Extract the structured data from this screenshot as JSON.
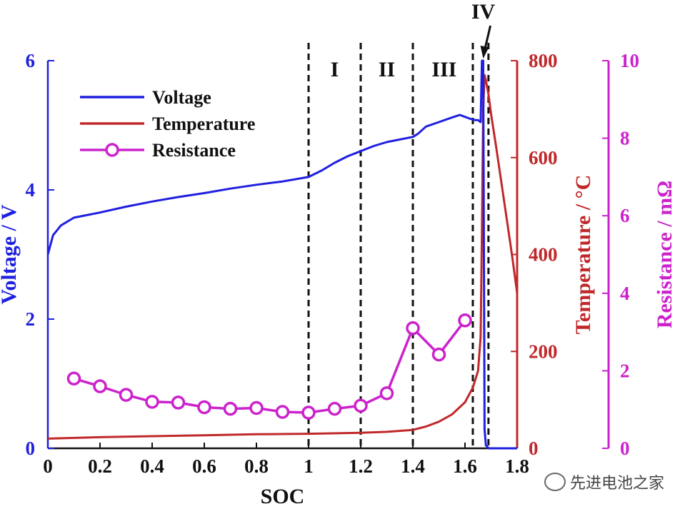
{
  "chart_data": {
    "type": "line",
    "xlabel": "SOC",
    "xlim": [
      0,
      1.8
    ],
    "xticks": [
      "0",
      "0.2",
      "0.4",
      "0.6",
      "0.8",
      "1",
      "1.2",
      "1.4",
      "1.6",
      "1.8"
    ],
    "xtick_values": [
      0,
      0.2,
      0.4,
      0.6,
      0.8,
      1.0,
      1.2,
      1.4,
      1.6,
      1.8
    ],
    "y_axes": [
      {
        "label": "Voltage / V",
        "lim": [
          0,
          6
        ],
        "ticks": [
          "0",
          "2",
          "4",
          "6"
        ],
        "tick_values": [
          0,
          2,
          4,
          6
        ],
        "color": "#1f1fe0",
        "side": "left"
      },
      {
        "label": "Temperature / °C",
        "lim": [
          0,
          800
        ],
        "ticks": [
          "0",
          "200",
          "400",
          "600",
          "800"
        ],
        "tick_values": [
          0,
          200,
          400,
          600,
          800
        ],
        "color": "#c0282a",
        "side": "right"
      },
      {
        "label": "Resistance / mΩ",
        "lim": [
          0,
          10
        ],
        "ticks": [
          "0",
          "2",
          "4",
          "6",
          "8",
          "10"
        ],
        "tick_values": [
          0,
          2,
          4,
          6,
          8,
          10
        ],
        "color": "#cc22cc",
        "side": "right-outer"
      }
    ],
    "series": [
      {
        "name": "Voltage",
        "axis": 0,
        "color": "#1f1fe0",
        "marker": "none",
        "x": [
          0,
          0.02,
          0.05,
          0.1,
          0.2,
          0.3,
          0.4,
          0.5,
          0.6,
          0.7,
          0.8,
          0.9,
          1.0,
          1.05,
          1.1,
          1.15,
          1.2,
          1.25,
          1.3,
          1.35,
          1.4,
          1.42,
          1.45,
          1.5,
          1.55,
          1.58,
          1.6,
          1.62,
          1.64,
          1.65,
          1.66,
          1.665,
          1.67,
          1.675,
          1.68,
          1.69,
          1.7,
          1.75,
          1.8
        ],
        "y": [
          3.0,
          3.3,
          3.45,
          3.57,
          3.65,
          3.74,
          3.82,
          3.89,
          3.95,
          4.02,
          4.08,
          4.13,
          4.2,
          4.3,
          4.42,
          4.52,
          4.6,
          4.68,
          4.74,
          4.78,
          4.82,
          4.87,
          4.98,
          5.05,
          5.12,
          5.16,
          5.13,
          5.1,
          5.08,
          5.08,
          5.05,
          6.0,
          6.0,
          0.3,
          0.05,
          0.0,
          0.0,
          0.0,
          0.0
        ]
      },
      {
        "name": "Temperature",
        "axis": 1,
        "color": "#c0282a",
        "marker": "none",
        "x": [
          0,
          0.2,
          0.4,
          0.6,
          0.8,
          1.0,
          1.2,
          1.3,
          1.4,
          1.45,
          1.5,
          1.55,
          1.6,
          1.63,
          1.65,
          1.66,
          1.665,
          1.67,
          1.675,
          1.68,
          1.69,
          1.7,
          1.72,
          1.75,
          1.78,
          1.8
        ],
        "y": [
          20,
          23,
          25,
          27,
          29,
          30,
          32,
          34,
          38,
          45,
          55,
          70,
          95,
          125,
          160,
          230,
          450,
          700,
          770,
          760,
          730,
          690,
          620,
          510,
          400,
          320
        ]
      },
      {
        "name": "Resistance",
        "axis": 2,
        "color": "#cc22cc",
        "marker": "circle",
        "x": [
          0.1,
          0.2,
          0.3,
          0.4,
          0.5,
          0.6,
          0.7,
          0.8,
          0.9,
          1.0,
          1.1,
          1.2,
          1.3,
          1.4,
          1.5,
          1.6
        ],
        "y": [
          1.8,
          1.6,
          1.38,
          1.2,
          1.18,
          1.06,
          1.02,
          1.04,
          0.94,
          0.92,
          1.02,
          1.1,
          1.42,
          3.1,
          2.42,
          3.3
        ]
      }
    ],
    "region_boundaries_x": [
      1.0,
      1.2,
      1.4,
      1.63,
      1.69
    ],
    "regions": [
      {
        "label": "I",
        "x": 1.1
      },
      {
        "label": "II",
        "x": 1.3
      },
      {
        "label": "III",
        "x": 1.52
      },
      {
        "label": "IV",
        "x": 1.67
      }
    ],
    "legend": {
      "entries": [
        "Voltage",
        "Temperature",
        "Resistance"
      ],
      "placement": "top-left"
    },
    "grid": false
  },
  "watermark": {
    "text": "先进电池之家",
    "icon": "wechat-icon"
  }
}
